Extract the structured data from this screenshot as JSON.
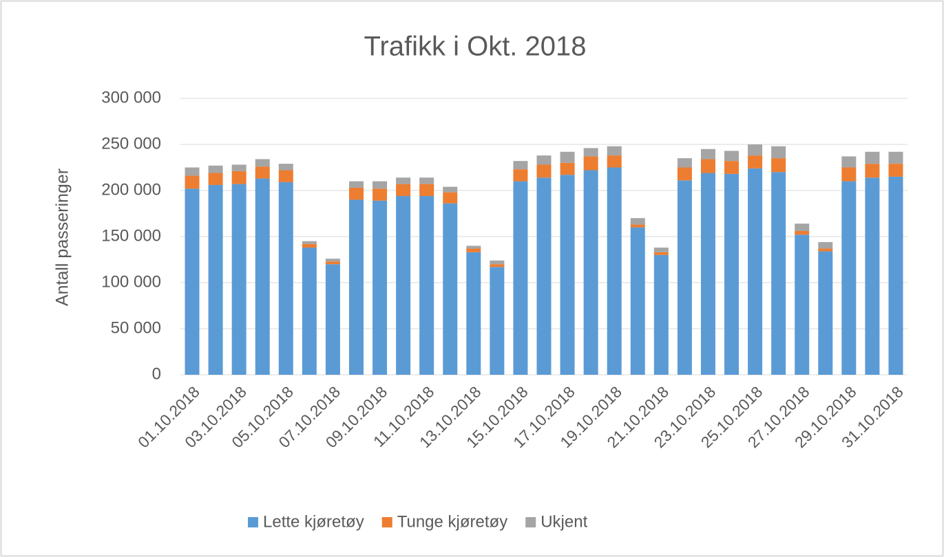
{
  "chart_data": {
    "type": "stacked_bar",
    "title": "Trafikk i Okt. 2018",
    "y_label": "Antall passeringer",
    "categories": [
      "01.10.2018",
      null,
      "03.10.2018",
      null,
      "05.10.2018",
      null,
      "07.10.2018",
      null,
      "09.10.2018",
      null,
      "11.10.2018",
      null,
      "13.10.2018",
      null,
      "15.10.2018",
      null,
      "17.10.2018",
      null,
      "19.10.2018",
      null,
      "21.10.2018",
      null,
      "23.10.2018",
      null,
      "25.10.2018",
      null,
      "27.10.2018",
      null,
      "29.10.2018",
      null,
      "31.10.2018"
    ],
    "series": [
      {
        "name": "Lette kjøretøy",
        "color": "#5b9bd5",
        "values": [
          202000,
          206000,
          207000,
          213000,
          209000,
          138000,
          120000,
          190000,
          189000,
          194000,
          194000,
          186000,
          133000,
          117000,
          210000,
          214000,
          217000,
          222000,
          225000,
          160000,
          130000,
          211000,
          219000,
          218000,
          224000,
          220000,
          152000,
          134000,
          210000,
          214000,
          215000
        ]
      },
      {
        "name": "Tunge kjøretøy",
        "color": "#ed7d31",
        "values": [
          14000,
          13000,
          14000,
          13000,
          13000,
          4000,
          3000,
          13000,
          13000,
          13000,
          13000,
          12000,
          4000,
          3000,
          13000,
          14000,
          13000,
          15000,
          13000,
          3000,
          3000,
          14000,
          15000,
          14000,
          14000,
          15000,
          4000,
          3000,
          15000,
          15000,
          14000
        ]
      },
      {
        "name": "Ukjent",
        "color": "#a5a5a5",
        "values": [
          9000,
          8000,
          7000,
          8000,
          7000,
          3000,
          3000,
          7000,
          8000,
          7000,
          7000,
          6000,
          3000,
          4000,
          9000,
          10000,
          12000,
          9000,
          10000,
          7000,
          5000,
          10000,
          11000,
          11000,
          12000,
          13000,
          8000,
          7000,
          12000,
          13000,
          13000
        ]
      }
    ],
    "ylim": [
      0,
      300000
    ],
    "yticks": [
      0,
      {
        "value": 50000,
        "label": "50 000"
      },
      {
        "value": 100000,
        "label": "100 000"
      },
      {
        "value": 150000,
        "label": "150 000"
      },
      {
        "value": 200000,
        "label": "200 000"
      },
      {
        "value": 250000,
        "label": "250 000"
      },
      {
        "value": 300000,
        "label": "300 000"
      }
    ],
    "grid": true,
    "legend": "bottom"
  }
}
